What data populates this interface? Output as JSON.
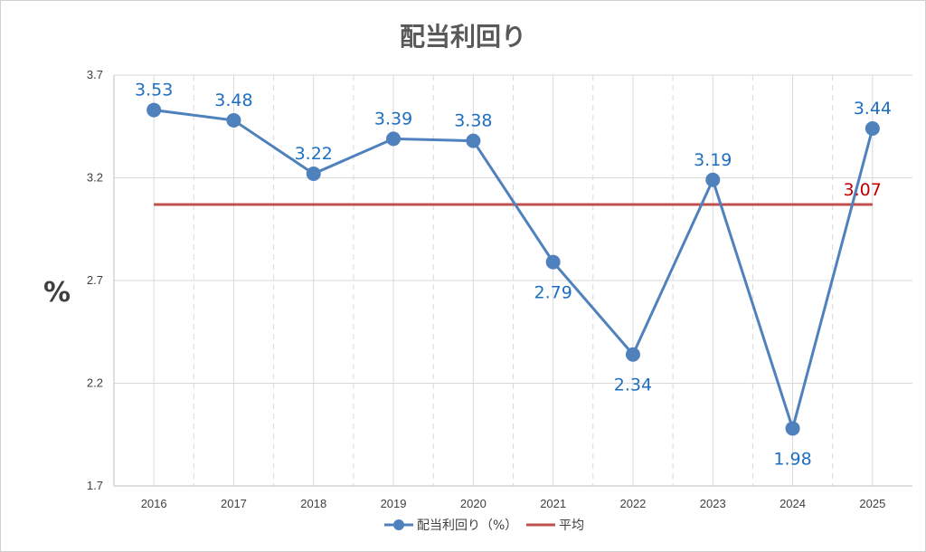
{
  "chart_data": {
    "type": "line",
    "title": "配当利回り",
    "ylabel": "%",
    "xlabel": "",
    "categories": [
      "2016",
      "2017",
      "2018",
      "2019",
      "2020",
      "2021",
      "2022",
      "2023",
      "2024",
      "2025"
    ],
    "series": [
      {
        "name": "配当利回り（%）",
        "values": [
          3.53,
          3.48,
          3.22,
          3.39,
          3.38,
          2.79,
          2.34,
          3.19,
          1.98,
          3.44
        ],
        "labels": [
          "3.53",
          "3.48",
          "3.22",
          "3.39",
          "3.38",
          "2.79",
          "2.34",
          "3.19",
          "1.98",
          "3.44"
        ],
        "label_positions": [
          "above",
          "above",
          "above",
          "above",
          "above",
          "below",
          "below",
          "above",
          "below",
          "above"
        ],
        "color": "#4f81bd"
      },
      {
        "name": "平均",
        "values": [
          3.07,
          3.07,
          3.07,
          3.07,
          3.07,
          3.07,
          3.07,
          3.07,
          3.07,
          3.07
        ],
        "end_label": "3.07",
        "color": "#c0504d",
        "label_color": "#c00000"
      }
    ],
    "ylim": [
      1.7,
      3.7
    ],
    "yticks": [
      "1.7",
      "2.2",
      "2.7",
      "3.2",
      "3.7"
    ],
    "grid": true,
    "legend": "bottom"
  }
}
